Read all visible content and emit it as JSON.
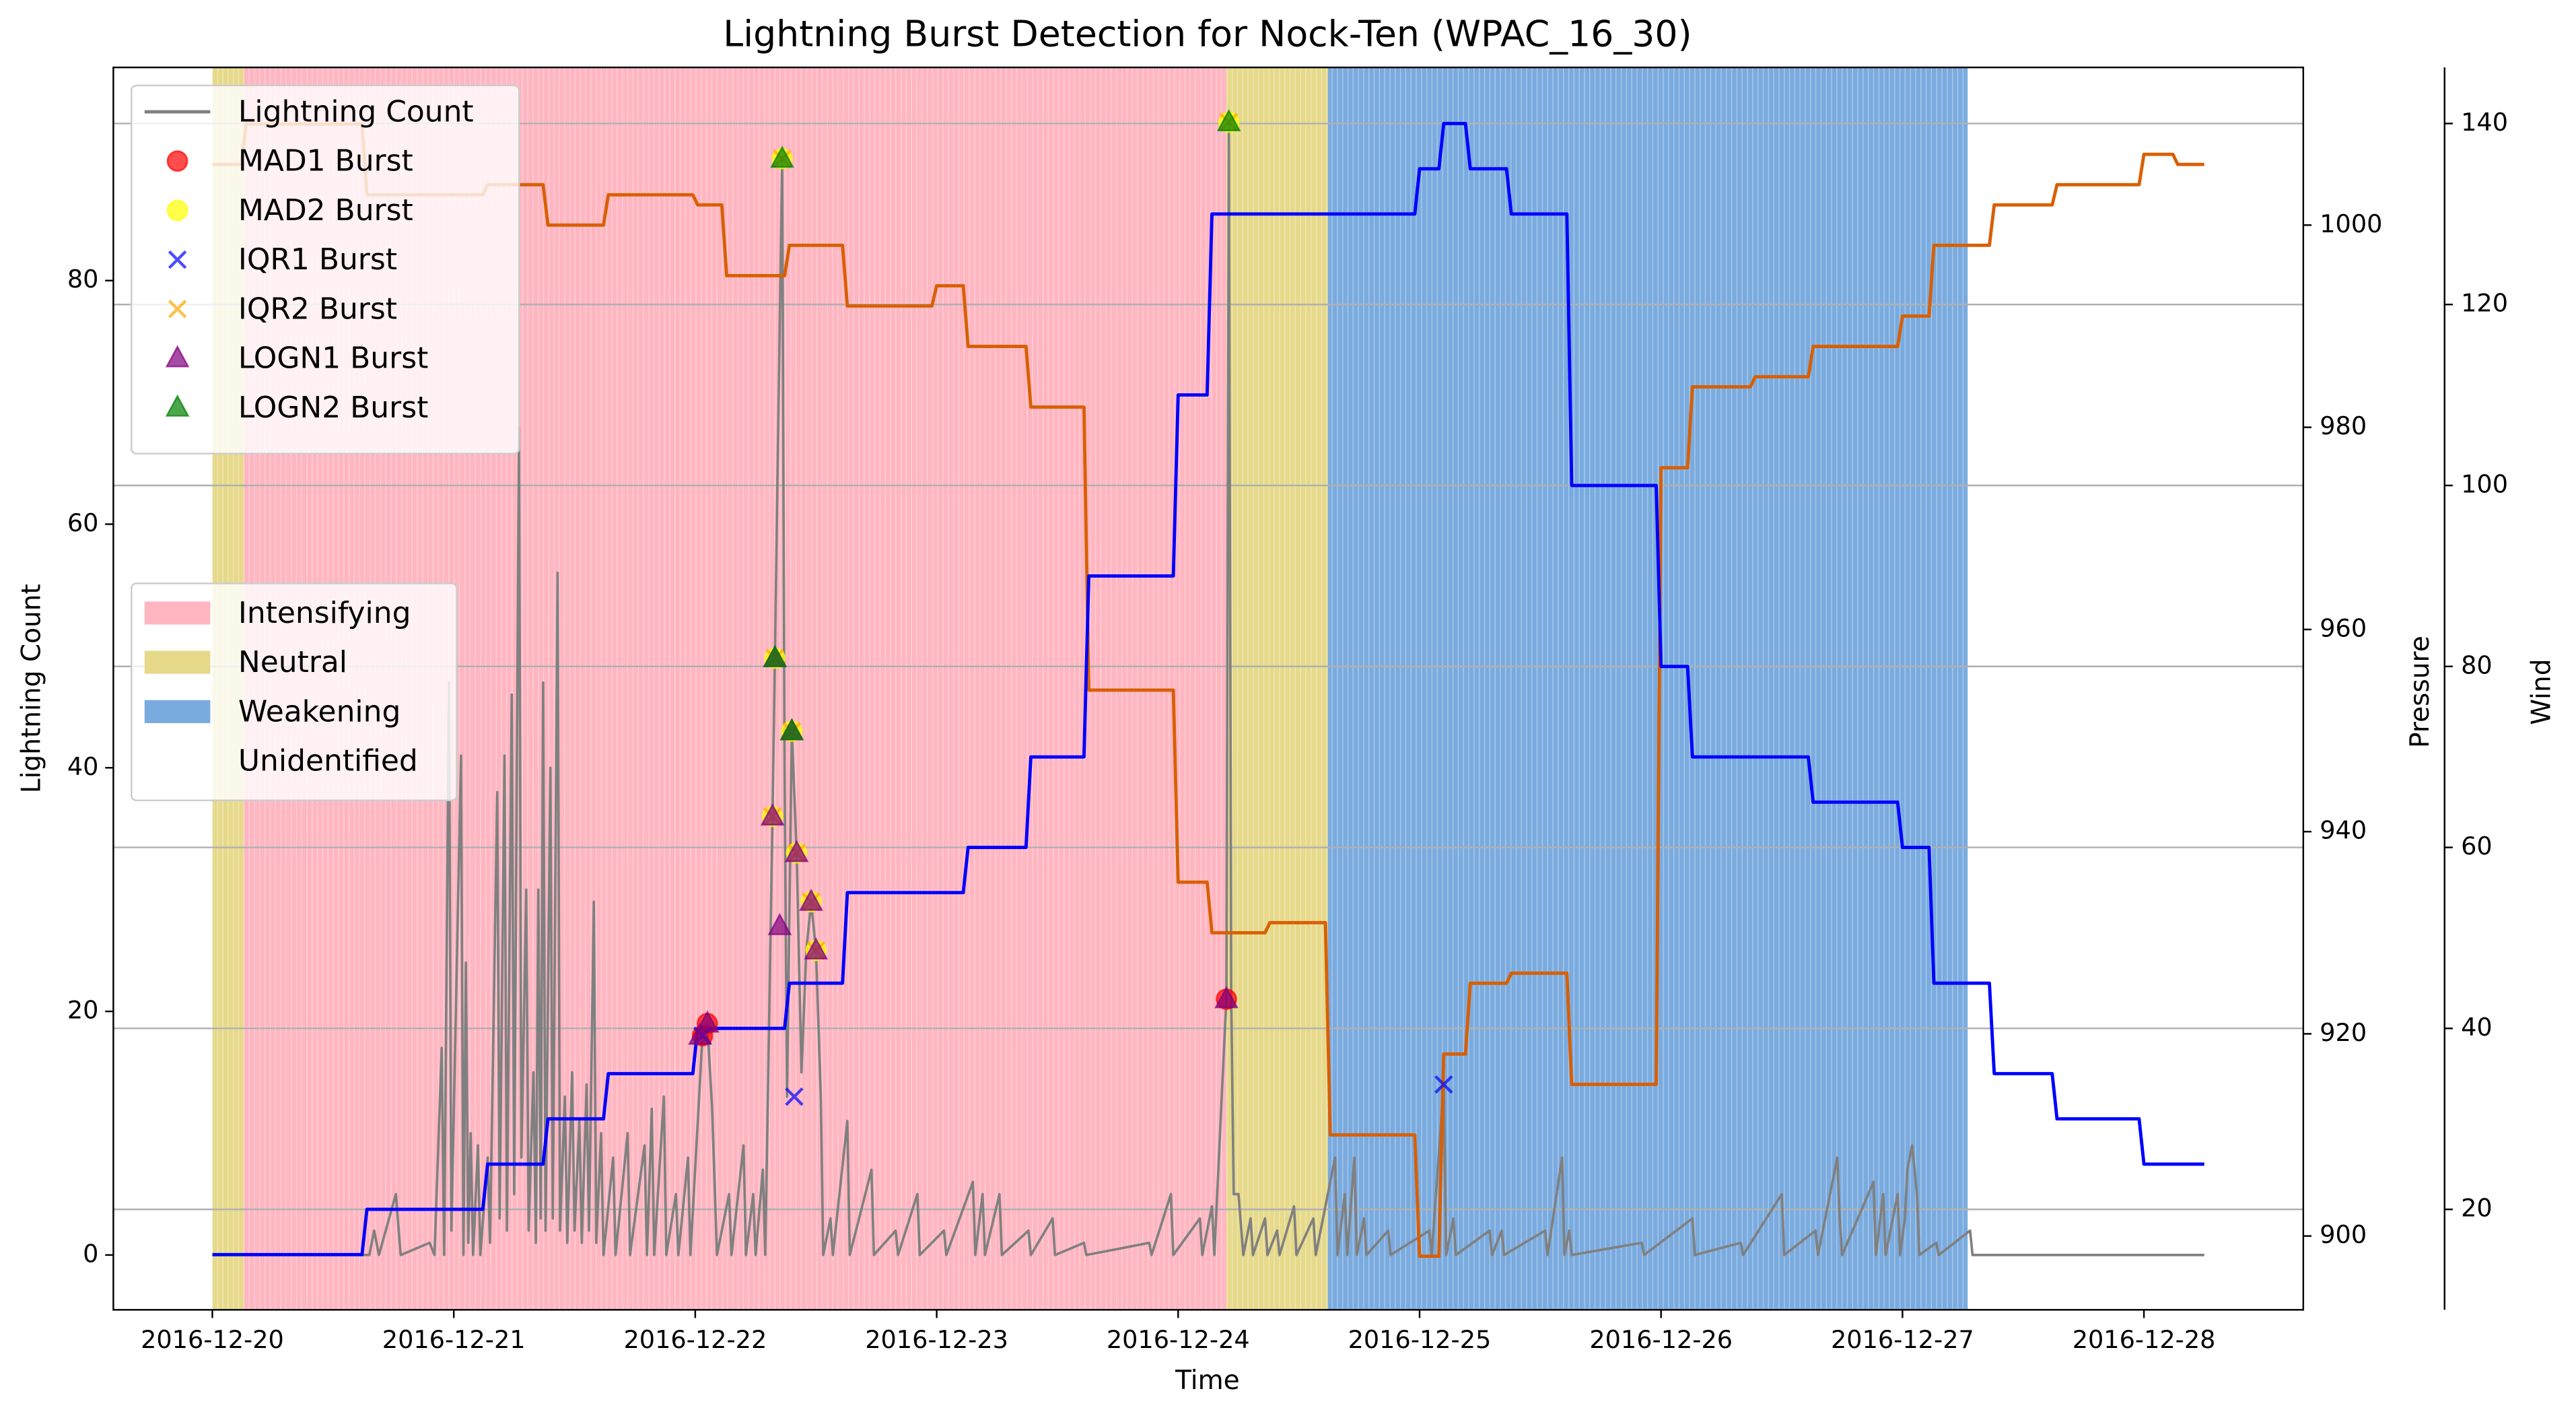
{
  "chart_data": {
    "type": "line",
    "title": "Lightning Burst Detection for Nock-Ten (WPAC_16_30)",
    "xlabel": "Time",
    "ylabel": "Lightning Count",
    "y2label": "Pressure",
    "y3label": "Wind",
    "ylabel_color": "#808080",
    "y2label_color": "#d95f02",
    "y3label_color": "#00008b",
    "xlim": [
      -0.41,
      8.66
    ],
    "xticks": [
      {
        "value": 0,
        "label": "2016-12-20"
      },
      {
        "value": 1,
        "label": "2016-12-21"
      },
      {
        "value": 2,
        "label": "2016-12-22"
      },
      {
        "value": 3,
        "label": "2016-12-23"
      },
      {
        "value": 4,
        "label": "2016-12-24"
      },
      {
        "value": 5,
        "label": "2016-12-25"
      },
      {
        "value": 6,
        "label": "2016-12-26"
      },
      {
        "value": 7,
        "label": "2016-12-27"
      },
      {
        "value": 8,
        "label": "2016-12-28"
      }
    ],
    "ylim": [
      -4.5,
      97.5
    ],
    "yticks": [
      0,
      20,
      40,
      60,
      80
    ],
    "y2lim": [
      892.7,
      1015.6
    ],
    "y2ticks": [
      900,
      920,
      940,
      960,
      980,
      1000
    ],
    "y3lim": [
      8.9,
      146.2
    ],
    "y3ticks": [
      20,
      40,
      60,
      80,
      100,
      120,
      140
    ],
    "grid": true,
    "grid_axis": "y3",
    "legend": "upper left",
    "phase_legend": "center left",
    "phases": [
      {
        "name": "Intensifying",
        "color": "#ffb6c1"
      },
      {
        "name": "Neutral",
        "color": "#e6d98a"
      },
      {
        "name": "Weakening",
        "color": "#7aabdf"
      },
      {
        "name": "Unidentified",
        "color": "#ffffff"
      }
    ],
    "spans": [
      {
        "phase": "Neutral",
        "start": 0,
        "end": 0.13
      },
      {
        "phase": "Intensifying",
        "start": 0.13,
        "end": 4.2
      },
      {
        "phase": "Neutral",
        "start": 4.2,
        "end": 4.62
      },
      {
        "phase": "Weakening",
        "start": 4.62,
        "end": 7.27
      }
    ],
    "series": [
      {
        "name": "Lightning Count",
        "color": "#808080",
        "axis": "y",
        "x": [
          0,
          0.65,
          0.67,
          0.69,
          0.76,
          0.78,
          0.9,
          0.92,
          0.95,
          0.96,
          0.98,
          0.99,
          1.03,
          1.04,
          1.05,
          1.06,
          1.07,
          1.08,
          1.1,
          1.11,
          1.14,
          1.15,
          1.18,
          1.19,
          1.21,
          1.22,
          1.24,
          1.25,
          1.27,
          1.28,
          1.3,
          1.31,
          1.33,
          1.34,
          1.35,
          1.36,
          1.37,
          1.38,
          1.4,
          1.41,
          1.43,
          1.44,
          1.46,
          1.47,
          1.49,
          1.5,
          1.52,
          1.53,
          1.55,
          1.56,
          1.58,
          1.59,
          1.61,
          1.62,
          1.66,
          1.67,
          1.72,
          1.73,
          1.79,
          1.8,
          1.82,
          1.83,
          1.87,
          1.88,
          1.92,
          1.93,
          1.97,
          1.98,
          2.03,
          2.05,
          2.07,
          2.09,
          2.14,
          2.15,
          2.2,
          2.21,
          2.24,
          2.25,
          2.28,
          2.29,
          2.32,
          2.33,
          2.34,
          2.36,
          2.37,
          2.38,
          2.4,
          2.42,
          2.44,
          2.46,
          2.48,
          2.5,
          2.52,
          2.53,
          2.56,
          2.57,
          2.63,
          2.64,
          2.73,
          2.74,
          2.83,
          2.84,
          2.92,
          2.93,
          3.03,
          3.04,
          3.15,
          3.16,
          3.19,
          3.2,
          3.26,
          3.27,
          3.38,
          3.39,
          3.48,
          3.49,
          3.61,
          3.62,
          3.88,
          3.89,
          3.97,
          3.98,
          4.09,
          4.1,
          4.14,
          4.15,
          4.19,
          4.2,
          4.21,
          4.22,
          4.23,
          4.25,
          4.27,
          4.3,
          4.31,
          4.36,
          4.37,
          4.41,
          4.42,
          4.48,
          4.49,
          4.56,
          4.57,
          4.65,
          4.66,
          4.69,
          4.7,
          4.73,
          4.74,
          4.77,
          4.78,
          4.87,
          4.88,
          5.04,
          5.05,
          5.1,
          5.11,
          5.14,
          5.15,
          5.29,
          5.3,
          5.34,
          5.35,
          5.52,
          5.53,
          5.59,
          5.6,
          5.62,
          5.63,
          5.92,
          5.93,
          6.13,
          6.14,
          6.33,
          6.34,
          6.5,
          6.51,
          6.64,
          6.65,
          6.73,
          6.74,
          6.75,
          6.88,
          6.89,
          6.92,
          6.93,
          6.98,
          6.99,
          7.01,
          7.02,
          7.04,
          7.06,
          7.07,
          7.14,
          7.15,
          7.28,
          7.29,
          8.25
        ],
        "values": [
          0,
          0,
          2,
          0,
          5,
          0,
          1,
          0,
          17,
          0,
          47,
          2,
          41,
          0,
          24,
          1,
          10,
          0,
          9,
          0,
          8,
          1,
          38,
          3,
          41,
          2,
          46,
          5,
          68,
          8,
          30,
          2,
          15,
          1,
          30,
          3,
          47,
          2,
          40,
          3,
          56,
          2,
          13,
          1,
          15,
          2,
          11,
          1,
          14,
          2,
          29,
          1,
          10,
          0,
          8,
          0,
          10,
          0,
          9,
          0,
          12,
          0,
          13,
          0,
          5,
          0,
          8,
          0,
          18,
          19,
          12,
          0,
          5,
          0,
          9,
          0,
          5,
          0,
          7,
          0,
          36,
          49,
          63,
          90,
          40,
          13,
          43,
          33,
          15,
          25,
          29,
          25,
          13,
          0,
          3,
          0,
          11,
          0,
          7,
          0,
          2,
          0,
          5,
          0,
          2,
          0,
          6,
          0,
          5,
          0,
          5,
          0,
          2,
          0,
          3,
          0,
          1,
          0,
          1,
          0,
          5,
          0,
          3,
          0,
          4,
          0,
          17,
          21,
          93,
          21,
          5,
          5,
          0,
          3,
          0,
          3,
          0,
          2,
          0,
          4,
          0,
          3,
          0,
          8,
          0,
          5,
          0,
          8,
          0,
          3,
          0,
          2,
          0,
          2,
          0,
          14,
          0,
          3,
          0,
          2,
          0,
          2,
          0,
          2,
          0,
          8,
          0,
          2,
          0,
          1,
          0,
          3,
          0,
          1,
          0,
          5,
          0,
          2,
          0,
          8,
          3,
          0,
          6,
          0,
          5,
          0,
          5,
          0,
          3,
          7,
          9,
          5,
          0,
          1,
          0,
          2,
          0,
          0
        ]
      },
      {
        "color": "#d95f02",
        "axis": "y2",
        "x": [
          0,
          0.12,
          0.14,
          0.62,
          0.64,
          1.12,
          1.14,
          1.37,
          1.39,
          1.62,
          1.64,
          1.99,
          2.01,
          2.11,
          2.13,
          2.37,
          2.39,
          2.61,
          2.63,
          2.98,
          3.0,
          3.11,
          3.13,
          3.37,
          3.39,
          3.61,
          3.63,
          3.98,
          4.0,
          4.12,
          4.14,
          4.36,
          4.38,
          4.61,
          4.63,
          4.98,
          5.0,
          5.08,
          5.1,
          5.19,
          5.21,
          5.36,
          5.38,
          5.61,
          5.63,
          5.98,
          6.0,
          6.11,
          6.13,
          6.37,
          6.39,
          6.61,
          6.63,
          6.98,
          7.0,
          7.11,
          7.13,
          7.36,
          7.38,
          7.62,
          7.64,
          7.98,
          8.0,
          8.12,
          8.14,
          8.25
        ],
        "values": [
          1006,
          1006,
          1010,
          1010,
          1003,
          1003,
          1004,
          1004,
          1000,
          1000,
          1003,
          1003,
          1002,
          1002,
          995,
          995,
          998,
          998,
          992,
          992,
          994,
          994,
          988,
          988,
          982,
          982,
          954,
          954,
          935,
          935,
          930,
          930,
          931,
          931,
          910,
          910,
          898,
          898,
          918,
          918,
          925,
          925,
          926,
          926,
          915,
          915,
          976,
          976,
          984,
          984,
          985,
          985,
          988,
          988,
          991,
          991,
          998,
          998,
          1002,
          1002,
          1004,
          1004,
          1007,
          1007,
          1006,
          1006
        ]
      },
      {
        "color": "#0000ff",
        "axis": "y3",
        "x": [
          0,
          0.62,
          0.64,
          1.12,
          1.14,
          1.37,
          1.39,
          1.62,
          1.64,
          1.99,
          2.01,
          2.37,
          2.39,
          2.61,
          2.63,
          3.11,
          3.13,
          3.37,
          3.39,
          3.61,
          3.63,
          3.98,
          4.0,
          4.12,
          4.14,
          4.98,
          5.0,
          5.08,
          5.1,
          5.19,
          5.21,
          5.36,
          5.38,
          5.61,
          5.63,
          5.98,
          6.0,
          6.11,
          6.13,
          6.61,
          6.63,
          6.98,
          7.0,
          7.11,
          7.13,
          7.36,
          7.38,
          7.62,
          7.64,
          7.98,
          8.0,
          8.25
        ],
        "values": [
          15,
          15,
          20,
          20,
          25,
          25,
          30,
          30,
          35,
          35,
          40,
          40,
          45,
          45,
          55,
          55,
          60,
          60,
          70,
          70,
          90,
          90,
          110,
          110,
          130,
          130,
          135,
          135,
          140,
          140,
          135,
          135,
          130,
          130,
          100,
          100,
          80,
          80,
          70,
          70,
          65,
          65,
          60,
          60,
          45,
          45,
          35,
          35,
          30,
          30,
          25,
          25
        ]
      },
      {
        "name": "MAD1 Burst",
        "color": "#ff0000",
        "marker": "o",
        "alpha": 0.7,
        "axis": "y",
        "x": [
          2.03,
          2.05,
          4.2
        ],
        "values": [
          18,
          19,
          21
        ]
      },
      {
        "name": "MAD2 Burst",
        "color": "#ffff00",
        "marker": "o",
        "alpha": 0.7,
        "axis": "y",
        "x": [
          2.32,
          2.33,
          2.36,
          2.4,
          2.42,
          2.48,
          2.5,
          4.21
        ],
        "values": [
          36,
          49,
          90,
          43,
          33,
          29,
          25,
          93
        ]
      },
      {
        "name": "IQR1 Burst",
        "color": "#0000ff",
        "marker": "x",
        "alpha": 0.7,
        "axis": "y",
        "x": [
          2.03,
          2.41,
          5.1
        ],
        "values": [
          18,
          13,
          14
        ]
      },
      {
        "name": "IQR2 Burst",
        "color": "#ffa500",
        "marker": "x",
        "alpha": 0.7,
        "axis": "y",
        "x": [
          2.32,
          2.33,
          2.36,
          2.4,
          2.42,
          2.48,
          2.5,
          4.21
        ],
        "values": [
          36,
          49,
          90,
          43,
          33,
          29,
          25,
          93
        ]
      },
      {
        "name": "LOGN1 Burst",
        "color": "#800080",
        "marker": "^",
        "alpha": 0.7,
        "axis": "y",
        "x": [
          2.02,
          2.05,
          2.32,
          2.33,
          2.35,
          2.4,
          2.42,
          2.48,
          2.5,
          4.2
        ],
        "values": [
          18,
          19,
          36,
          49,
          27,
          43,
          33,
          29,
          25,
          21
        ]
      },
      {
        "name": "LOGN2 Burst",
        "color": "#008000",
        "marker": "^",
        "alpha": 0.7,
        "axis": "y",
        "x": [
          2.33,
          2.36,
          2.4,
          4.21
        ],
        "values": [
          49,
          90,
          43,
          93
        ]
      }
    ]
  }
}
